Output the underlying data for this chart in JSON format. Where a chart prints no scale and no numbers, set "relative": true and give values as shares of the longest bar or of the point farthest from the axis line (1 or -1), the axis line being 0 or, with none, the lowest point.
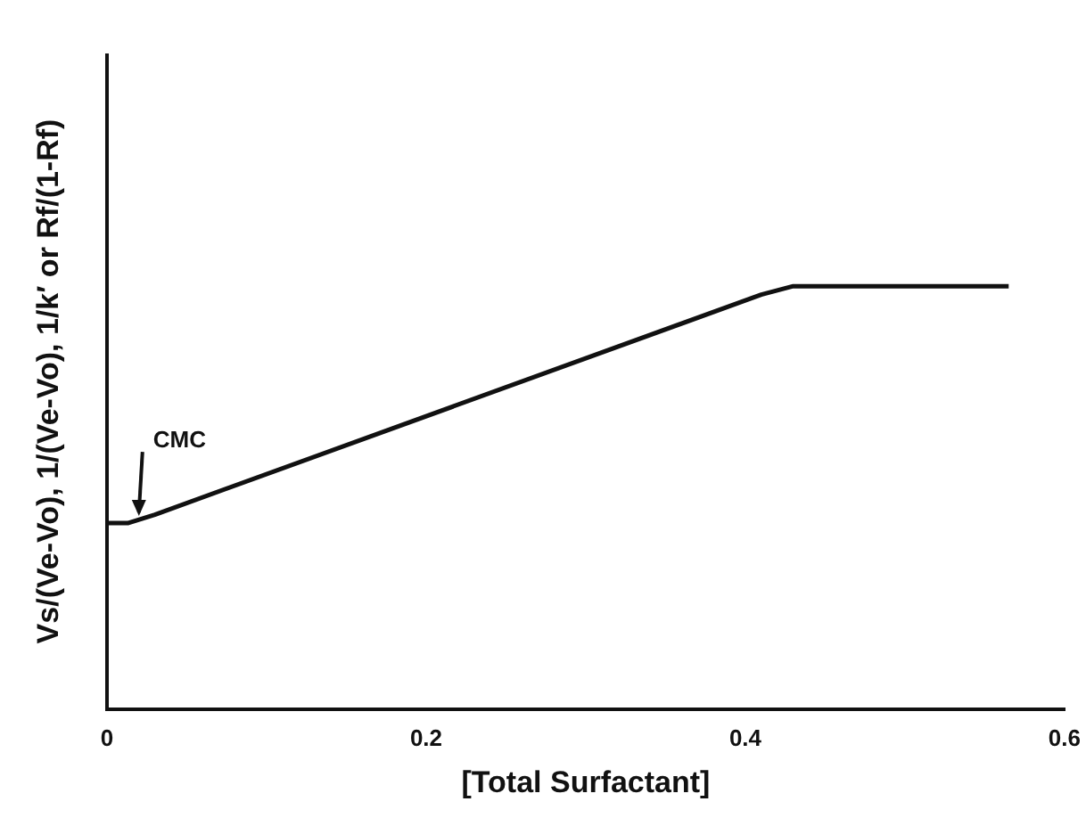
{
  "chart_data": {
    "type": "line",
    "relative": true,
    "xlabel": "[Total Surfactant]",
    "ylabel": "Vs/(Ve-Vo), 1/(Ve-Vo), 1/k′ or Rf/(1-Rf)",
    "xlim": [
      0,
      0.6
    ],
    "xticks": [
      0,
      0.2,
      0.4,
      0.6
    ],
    "series": [
      {
        "color": "#111111",
        "x": [
          0,
          0.013,
          0.03,
          0.41,
          0.43,
          0.565
        ],
        "values": [
          0.44,
          0.44,
          0.46,
          0.98,
          1,
          1
        ]
      }
    ],
    "annotations": [
      {
        "text": "CMC",
        "x": 0.02,
        "y": 0.44
      }
    ],
    "grid": false,
    "legend": false,
    "marker": "none",
    "line_style": "solid"
  }
}
